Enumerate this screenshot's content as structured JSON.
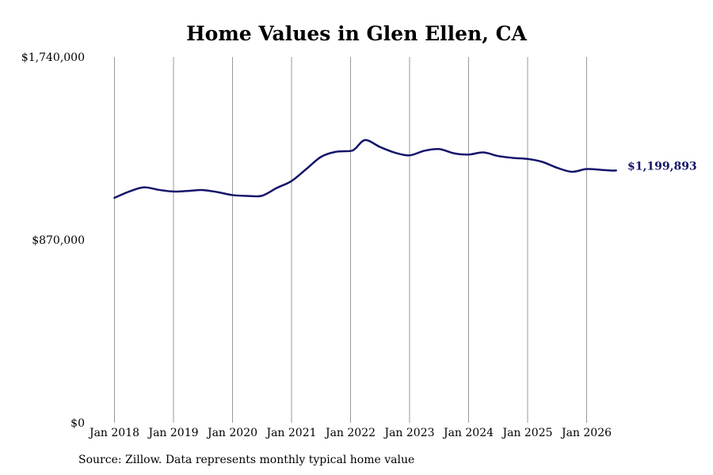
{
  "chart_data": {
    "type": "line",
    "title": "Home Values in Glen Ellen, CA",
    "xlabel": "",
    "ylabel": "",
    "ylim": [
      0,
      1740000
    ],
    "xlim": [
      "2018-01",
      "2026-07"
    ],
    "y_ticks": [
      "$0",
      "$870,000",
      "$1,740,000"
    ],
    "y_tick_values": [
      0,
      870000,
      1740000
    ],
    "x_ticks": [
      "Jan 2018",
      "Jan 2019",
      "Jan 2020",
      "Jan 2021",
      "Jan 2022",
      "Jan 2023",
      "Jan 2024",
      "Jan 2025",
      "Jan 2026"
    ],
    "x_tick_dates": [
      "2018-01",
      "2019-01",
      "2020-01",
      "2021-01",
      "2022-01",
      "2023-01",
      "2024-01",
      "2025-01",
      "2026-01"
    ],
    "grid": "vertical",
    "line_color": "#14146b",
    "grid_color": "#999999",
    "end_label": "$1,199,893",
    "series": [
      {
        "x": [
          "2018-01",
          "2018-04",
          "2018-07",
          "2018-10",
          "2019-01",
          "2019-04",
          "2019-07",
          "2019-10",
          "2020-01",
          "2020-04",
          "2020-07",
          "2020-10",
          "2021-01",
          "2021-04",
          "2021-07",
          "2021-10",
          "2022-01",
          "2022-02",
          "2022-04",
          "2022-07",
          "2022-10",
          "2023-01",
          "2023-04",
          "2023-07",
          "2023-10",
          "2024-01",
          "2024-04",
          "2024-07",
          "2024-10",
          "2025-01",
          "2025-04",
          "2025-07",
          "2025-10",
          "2026-01",
          "2026-04",
          "2026-06",
          "2026-07"
        ],
        "values": [
          1070000,
          1100000,
          1120000,
          1108000,
          1100000,
          1103000,
          1107000,
          1097000,
          1083000,
          1079000,
          1080000,
          1117000,
          1150000,
          1207000,
          1265000,
          1289000,
          1293000,
          1305000,
          1345000,
          1312000,
          1285000,
          1272000,
          1294000,
          1302000,
          1282000,
          1276000,
          1286000,
          1269000,
          1260000,
          1255000,
          1241000,
          1213000,
          1194000,
          1207000,
          1203000,
          1200000,
          1199893
        ]
      }
    ]
  },
  "footer": {
    "source": "Source: Zillow. Data represents monthly typical home value"
  }
}
